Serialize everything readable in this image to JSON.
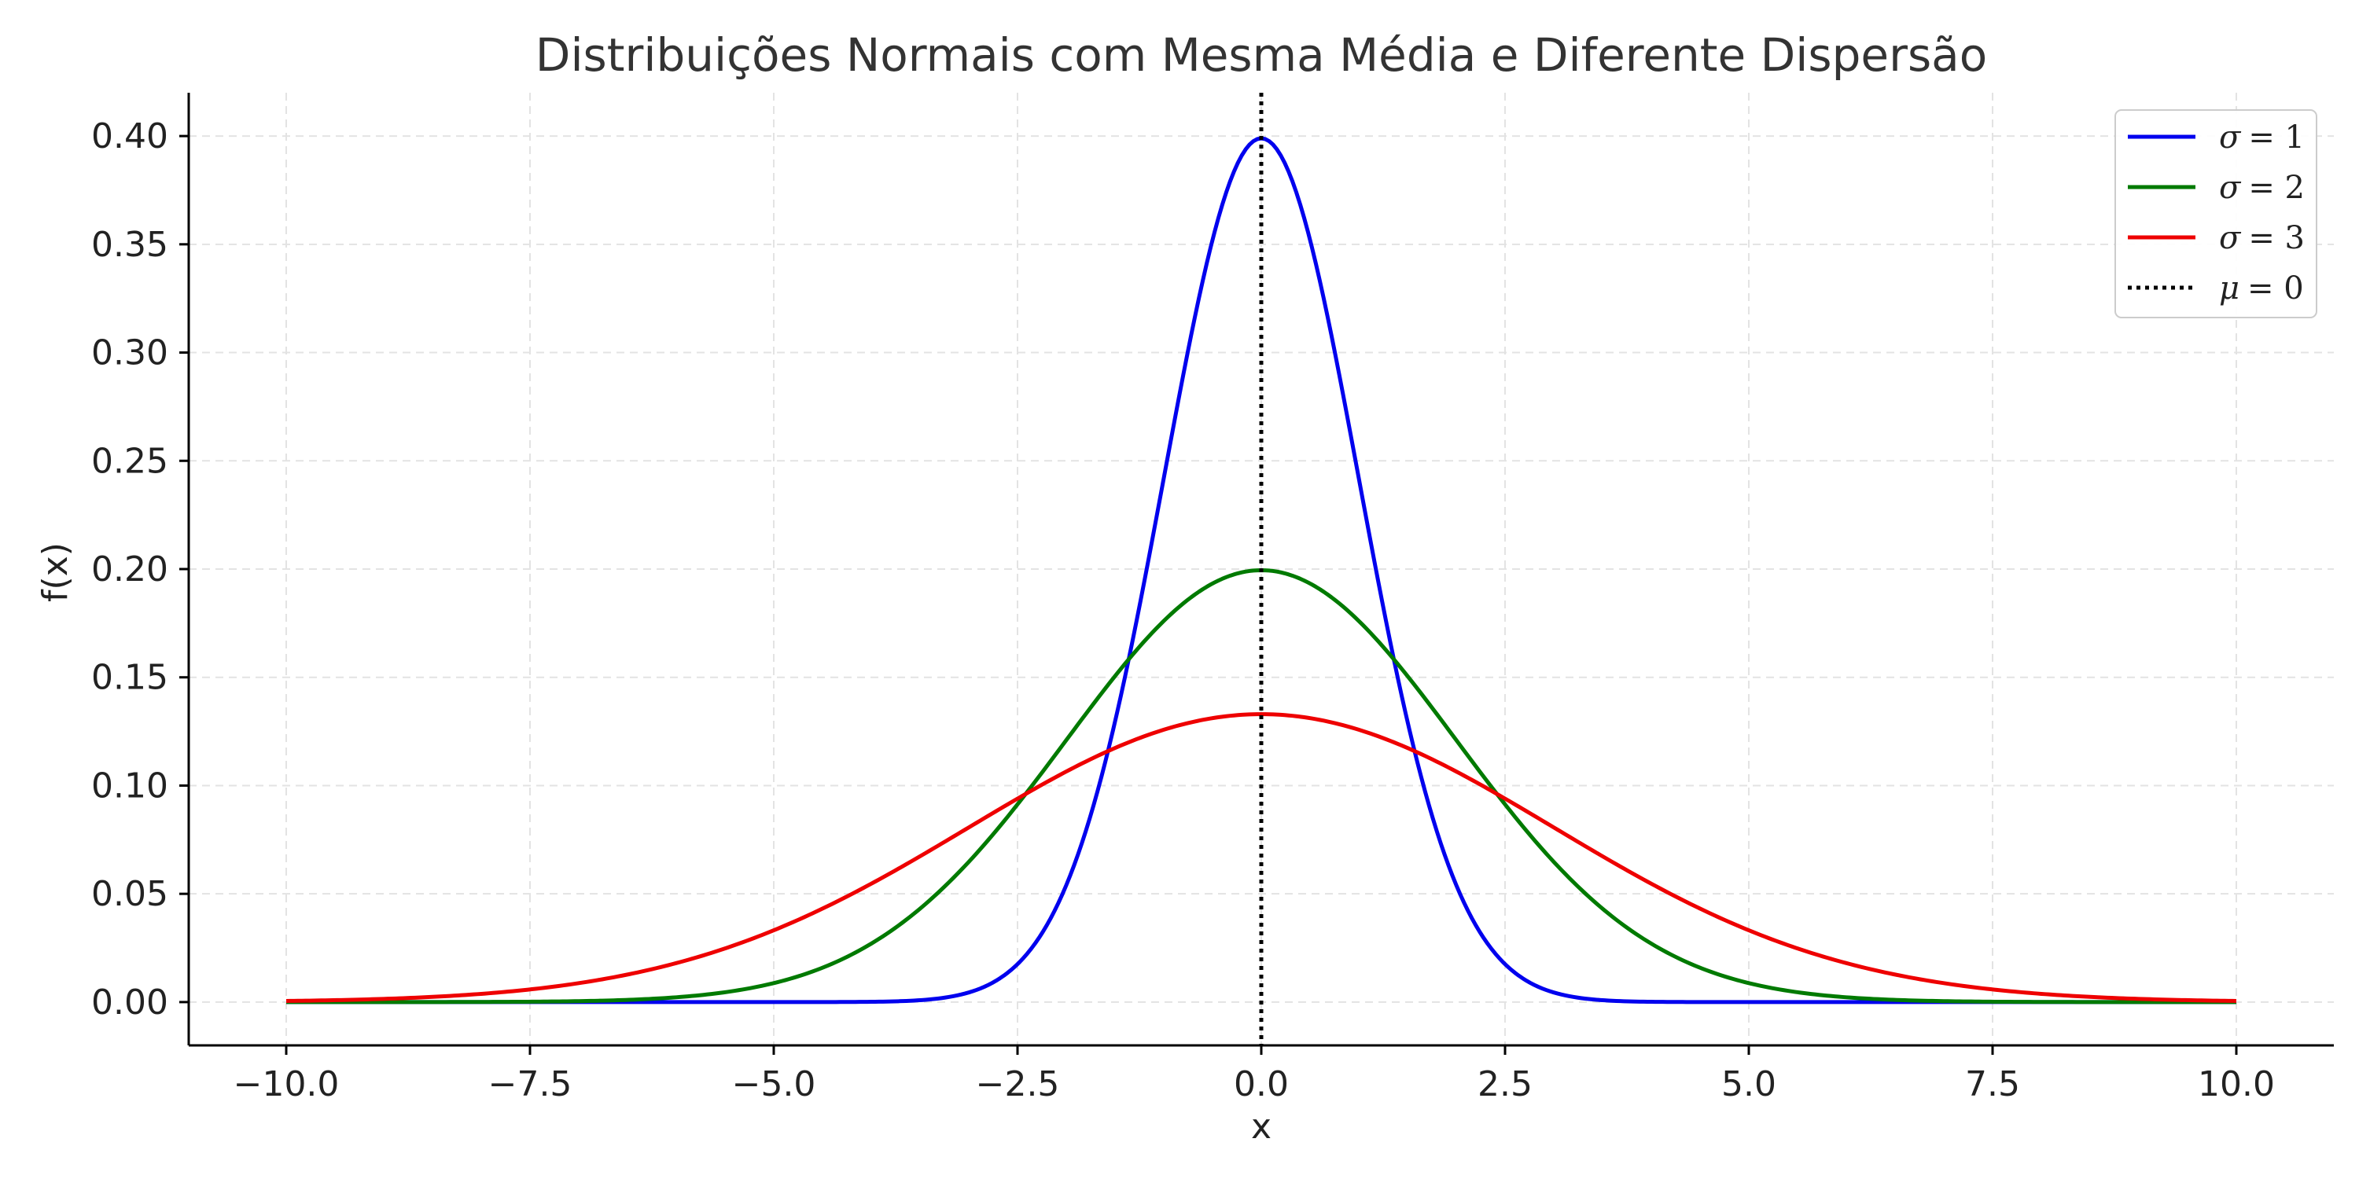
{
  "chart_data": {
    "type": "line",
    "title": "Distribuições Normais com Mesma Média e Diferente Dispersão",
    "xlabel": "x",
    "ylabel": "f(x)",
    "xlim": [
      -11,
      11
    ],
    "ylim": [
      -0.02,
      0.42
    ],
    "x_range": [
      -10,
      10
    ],
    "x_ticks": [
      -10.0,
      -7.5,
      -5.0,
      -2.5,
      0.0,
      2.5,
      5.0,
      7.5,
      10.0
    ],
    "x_tick_labels": [
      "−10.0",
      "−7.5",
      "−5.0",
      "−2.5",
      "0.0",
      "2.5",
      "5.0",
      "7.5",
      "10.0"
    ],
    "y_ticks": [
      0.0,
      0.05,
      0.1,
      0.15,
      0.2,
      0.25,
      0.3,
      0.35,
      0.4
    ],
    "y_tick_labels": [
      "0.00",
      "0.05",
      "0.10",
      "0.15",
      "0.20",
      "0.25",
      "0.30",
      "0.35",
      "0.40"
    ],
    "grid": true,
    "legend_position": "top-right",
    "series": [
      {
        "name": "σ = 1",
        "mu": 0,
        "sigma": 1,
        "color": "#0000ee",
        "style": "solid",
        "legend_symbol": "σ",
        "legend_value": "= 1"
      },
      {
        "name": "σ = 2",
        "mu": 0,
        "sigma": 2,
        "color": "#007a00",
        "style": "solid",
        "legend_symbol": "σ",
        "legend_value": "= 2"
      },
      {
        "name": "σ = 3",
        "mu": 0,
        "sigma": 3,
        "color": "#ee0000",
        "style": "solid",
        "legend_symbol": "σ",
        "legend_value": "= 3"
      }
    ],
    "mean_line": {
      "name": "μ = 0",
      "x": 0,
      "color": "#000000",
      "style": "dotted",
      "legend_symbol": "μ",
      "legend_value": "= 0"
    }
  }
}
